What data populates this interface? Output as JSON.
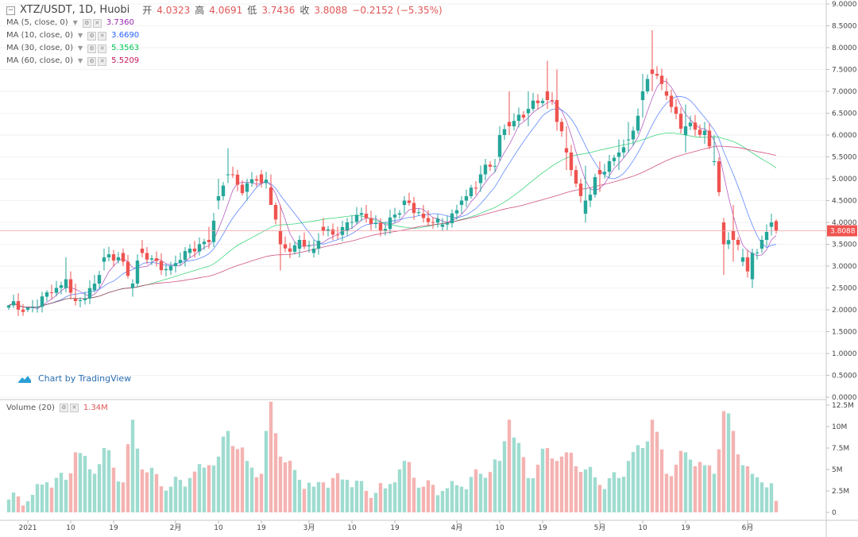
{
  "header": {
    "symbol": "XTZ/USDT, 1D, Huobi",
    "open_label": "开",
    "open_value": "4.0323",
    "high_label": "高",
    "high_value": "4.0691",
    "low_label": "低",
    "low_value": "3.7436",
    "close_label": "收",
    "close_value": "3.8088",
    "change": "−0.2152 (−5.35%)"
  },
  "indicators": [
    {
      "label": "MA (5, close, 0)",
      "value": "3.7360",
      "color": "#9c27b0"
    },
    {
      "label": "MA (10, close, 0)",
      "value": "3.6690",
      "color": "#2962ff"
    },
    {
      "label": "MA (30, close, 0)",
      "value": "5.3563",
      "color": "#00c853"
    },
    {
      "label": "MA (60, close, 0)",
      "value": "5.5209",
      "color": "#c2185b"
    }
  ],
  "volume_legend": {
    "label": "Volume (20)",
    "value": "1.34M"
  },
  "branding": "Chart by TradingView",
  "colors": {
    "up": "#26a69a",
    "down": "#ef5350",
    "vol_up": "#9fdcd0",
    "vol_down": "#f4b3b2",
    "last_line": "#f0a0a0",
    "last_tag": "#ef5350"
  },
  "chart_data": {
    "type": "candlestick",
    "title": "XTZ/USDT, 1D, Huobi",
    "ylim": [
      0,
      9.0
    ],
    "y_ticks": [
      "9.0000",
      "8.5000",
      "8.0000",
      "7.5000",
      "7.0000",
      "6.5000",
      "6.0000",
      "5.5000",
      "5.0000",
      "4.5000",
      "4.0000",
      "3.5000",
      "3.0000",
      "2.5000",
      "2.0000",
      "1.5000",
      "1.0000",
      "0.5000",
      "0.0000"
    ],
    "volume_ylim": [
      0,
      12.5
    ],
    "volume_ticks": [
      "12.5M",
      "10M",
      "7.5M",
      "5M",
      "2.5M",
      "0"
    ],
    "x_ticks": [
      {
        "label": "2021",
        "index": 4
      },
      {
        "label": "10",
        "index": 13
      },
      {
        "label": "19",
        "index": 22
      },
      {
        "label": "2月",
        "index": 35
      },
      {
        "label": "10",
        "index": 44
      },
      {
        "label": "19",
        "index": 53
      },
      {
        "label": "3月",
        "index": 63
      },
      {
        "label": "10",
        "index": 72
      },
      {
        "label": "19",
        "index": 81
      },
      {
        "label": "4月",
        "index": 94
      },
      {
        "label": "10",
        "index": 103
      },
      {
        "label": "19",
        "index": 112
      },
      {
        "label": "5月",
        "index": 124
      },
      {
        "label": "10",
        "index": 133
      },
      {
        "label": "19",
        "index": 142
      },
      {
        "label": "6月",
        "index": 155
      }
    ],
    "last_price": "3.8088",
    "anchors": [
      [
        0,
        2.05,
        2.1,
        2.0,
        2.1,
        1.5
      ],
      [
        4,
        2.0,
        2.05,
        1.95,
        2.05,
        1.3
      ],
      [
        8,
        2.3,
        2.45,
        2.2,
        2.4,
        3.5
      ],
      [
        12,
        2.5,
        3.2,
        2.4,
        2.7,
        3.8
      ],
      [
        14,
        2.25,
        2.6,
        2.1,
        2.2,
        7.0
      ],
      [
        18,
        2.45,
        2.8,
        2.4,
        2.6,
        4.5
      ],
      [
        20,
        3.1,
        3.4,
        2.9,
        3.2,
        7.5
      ],
      [
        24,
        3.3,
        3.4,
        3.0,
        3.1,
        3.5
      ],
      [
        26,
        2.5,
        2.7,
        2.3,
        2.6,
        10.8
      ],
      [
        28,
        3.4,
        3.6,
        3.2,
        3.3,
        5.0
      ],
      [
        34,
        2.9,
        3.1,
        2.8,
        3.0,
        3.0
      ],
      [
        38,
        3.3,
        3.5,
        3.2,
        3.4,
        4.0
      ],
      [
        42,
        3.6,
        3.9,
        3.4,
        3.55,
        5.5
      ],
      [
        44,
        4.5,
        5.0,
        4.3,
        4.6,
        6.5
      ],
      [
        46,
        5.1,
        5.7,
        4.9,
        5.1,
        9.5
      ],
      [
        50,
        4.7,
        5.0,
        4.5,
        4.9,
        6.0
      ],
      [
        53,
        5.1,
        5.2,
        4.8,
        4.9,
        4.5
      ],
      [
        55,
        4.8,
        5.1,
        4.4,
        4.4,
        12.9
      ],
      [
        57,
        3.8,
        4.4,
        2.9,
        3.5,
        6.5
      ],
      [
        61,
        3.4,
        3.7,
        3.2,
        3.6,
        3.8
      ],
      [
        64,
        3.3,
        3.6,
        3.2,
        3.4,
        3.0
      ],
      [
        66,
        3.9,
        4.1,
        3.7,
        3.8,
        3.5
      ],
      [
        71,
        3.8,
        4.1,
        3.7,
        4.0,
        3.8
      ],
      [
        75,
        4.2,
        4.4,
        4.0,
        4.1,
        2.5
      ],
      [
        79,
        3.8,
        4.0,
        3.7,
        3.85,
        2.8
      ],
      [
        83,
        4.4,
        4.6,
        4.2,
        4.5,
        6.0
      ],
      [
        87,
        4.2,
        4.4,
        4.0,
        4.1,
        3.0
      ],
      [
        91,
        3.9,
        4.1,
        3.8,
        3.95,
        2.5
      ],
      [
        95,
        4.4,
        4.6,
        4.2,
        4.5,
        3.0
      ],
      [
        99,
        4.9,
        5.3,
        4.7,
        5.1,
        4.5
      ],
      [
        103,
        5.5,
        6.2,
        5.4,
        6.0,
        6.0
      ],
      [
        105,
        6.3,
        7.0,
        6.0,
        6.2,
        10.8
      ],
      [
        109,
        6.5,
        7.0,
        6.2,
        6.6,
        4.0
      ],
      [
        113,
        7.0,
        7.7,
        6.6,
        6.8,
        7.5
      ],
      [
        115,
        6.8,
        7.5,
        6.1,
        6.3,
        6.0
      ],
      [
        117,
        5.7,
        6.2,
        5.2,
        5.6,
        7.0
      ],
      [
        121,
        4.2,
        5.3,
        4.0,
        4.5,
        5.0
      ],
      [
        124,
        5.2,
        5.4,
        4.7,
        5.1,
        3.2
      ],
      [
        128,
        5.5,
        5.9,
        5.2,
        5.6,
        4.0
      ],
      [
        130,
        5.9,
        6.3,
        5.6,
        5.9,
        6.0
      ],
      [
        133,
        6.8,
        7.4,
        6.4,
        7.0,
        7.5
      ],
      [
        135,
        7.5,
        8.4,
        7.0,
        7.4,
        10.8
      ],
      [
        138,
        7.0,
        7.3,
        6.8,
        6.9,
        4.5
      ],
      [
        142,
        6.0,
        6.7,
        5.6,
        6.2,
        7.0
      ],
      [
        146,
        6.0,
        6.3,
        5.8,
        6.1,
        5.5
      ],
      [
        148,
        5.4,
        6.0,
        5.3,
        5.4,
        4.5
      ],
      [
        150,
        4.0,
        4.1,
        2.8,
        3.5,
        11.8
      ],
      [
        152,
        3.8,
        4.4,
        3.1,
        3.6,
        9.5
      ],
      [
        154,
        3.1,
        3.4,
        3.0,
        3.2,
        5.5
      ],
      [
        156,
        2.7,
        3.4,
        2.5,
        3.3,
        4.5
      ],
      [
        158,
        3.4,
        3.7,
        3.3,
        3.6,
        3.5
      ],
      [
        160,
        3.9,
        4.2,
        3.7,
        4.0,
        3.4
      ],
      [
        161,
        4.03,
        4.07,
        3.74,
        3.81,
        1.34
      ]
    ]
  }
}
